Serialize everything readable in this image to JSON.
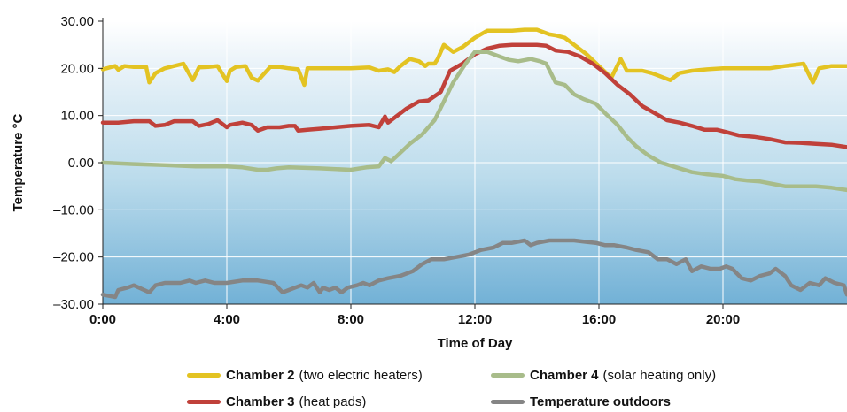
{
  "chart_data": {
    "type": "line",
    "xlabel": "Time of Day",
    "ylabel": "Temperature °C",
    "xlim": [
      0,
      24
    ],
    "ylim": [
      -30,
      30
    ],
    "x_ticks": [
      "0:00",
      "4:00",
      "8:00",
      "12:00",
      "16:00",
      "20:00"
    ],
    "y_ticks": [
      "30.00",
      "20.00",
      "10.00",
      "0.00",
      "–10.00",
      "–20.00",
      "–30.00"
    ],
    "background": "blue vertical gradient, white gridlines",
    "grid": true,
    "legend_position": "bottom",
    "series": [
      {
        "name": "Chamber 2",
        "note": "(two electric heaters)",
        "color": "#e3c322",
        "x": [
          0,
          0.4,
          0.5,
          0.7,
          1.0,
          1.4,
          1.5,
          1.7,
          2.0,
          2.6,
          2.9,
          3.1,
          3.4,
          3.7,
          4.0,
          4.1,
          4.3,
          4.6,
          4.8,
          5.0,
          5.4,
          5.7,
          6.0,
          6.3,
          6.5,
          6.6,
          6.8,
          7.0,
          7.5,
          8.0,
          8.6,
          8.9,
          9.2,
          9.4,
          9.6,
          9.9,
          10.2,
          10.4,
          10.5,
          10.7,
          10.8,
          11.0,
          11.3,
          11.6,
          12.0,
          12.4,
          12.8,
          13.2,
          13.6,
          14.0,
          14.4,
          14.6,
          14.9,
          15.2,
          15.6,
          16.0,
          16.4,
          16.7,
          16.9,
          17.1,
          17.4,
          17.7,
          17.9,
          18.3,
          18.6,
          19.0,
          19.5,
          20.0,
          20.5,
          21.0,
          21.5,
          22.0,
          22.6,
          22.9,
          23.1,
          23.5,
          24.0
        ],
        "y": [
          19.8,
          20.5,
          19.7,
          20.5,
          20.3,
          20.3,
          17.0,
          19.0,
          20.0,
          21.0,
          17.5,
          20.2,
          20.3,
          20.5,
          17.3,
          19.5,
          20.3,
          20.5,
          18.0,
          17.4,
          20.3,
          20.3,
          20.0,
          19.8,
          16.5,
          20.0,
          20.0,
          20.0,
          20.0,
          20.0,
          20.2,
          19.5,
          19.8,
          19.2,
          20.5,
          22.0,
          21.5,
          20.5,
          21.0,
          21.0,
          22.0,
          25.0,
          23.5,
          24.5,
          26.5,
          28.0,
          28.0,
          28.0,
          28.2,
          28.2,
          27.2,
          27.0,
          26.5,
          25.0,
          23.0,
          20.5,
          18.0,
          22.0,
          19.5,
          19.5,
          19.5,
          19.0,
          18.5,
          17.5,
          19.0,
          19.5,
          19.8,
          20.0,
          20.0,
          20.0,
          20.0,
          20.5,
          21.0,
          17.0,
          20.0,
          20.5,
          20.5
        ]
      },
      {
        "name": "Chamber 3",
        "note": "(heat pads)",
        "color": "#c0413a",
        "x": [
          0,
          0.5,
          1.0,
          1.5,
          1.7,
          2.0,
          2.3,
          2.6,
          2.9,
          3.1,
          3.4,
          3.7,
          4.0,
          4.1,
          4.5,
          4.8,
          5.0,
          5.3,
          5.7,
          6.0,
          6.2,
          6.3,
          6.6,
          7.0,
          7.5,
          8.0,
          8.6,
          8.9,
          9.1,
          9.2,
          9.5,
          9.8,
          10.2,
          10.5,
          10.9,
          11.2,
          11.6,
          12.0,
          12.4,
          12.8,
          13.2,
          13.6,
          14.0,
          14.3,
          14.6,
          15.0,
          15.4,
          15.8,
          16.2,
          16.6,
          17.0,
          17.4,
          17.8,
          18.2,
          18.6,
          19.0,
          19.4,
          19.8,
          20.1,
          20.5,
          21.0,
          21.5,
          22.0,
          22.5,
          23.0,
          23.5,
          24.0
        ],
        "y": [
          8.5,
          8.5,
          8.8,
          8.8,
          7.8,
          8.0,
          8.8,
          8.8,
          8.8,
          7.8,
          8.2,
          9.0,
          7.5,
          8.0,
          8.5,
          8.0,
          6.8,
          7.5,
          7.5,
          7.8,
          7.8,
          6.8,
          7.0,
          7.2,
          7.5,
          7.8,
          8.0,
          7.5,
          9.8,
          8.5,
          10.0,
          11.5,
          13.0,
          13.2,
          15.0,
          19.5,
          21.0,
          23.0,
          24.2,
          24.8,
          25.0,
          25.0,
          25.0,
          24.8,
          23.8,
          23.5,
          22.5,
          21.0,
          19.0,
          16.5,
          14.5,
          12.0,
          10.5,
          9.0,
          8.5,
          7.8,
          7.0,
          7.0,
          6.5,
          5.8,
          5.5,
          5.0,
          4.3,
          4.2,
          4.0,
          3.8,
          3.3
        ]
      },
      {
        "name": "Chamber 4",
        "note": "(solar heating only)",
        "color": "#a8bc8a",
        "x": [
          0,
          1.0,
          2.0,
          3.0,
          4.0,
          4.5,
          5.0,
          5.3,
          5.6,
          6.0,
          7.0,
          8.0,
          8.5,
          8.9,
          9.1,
          9.3,
          9.5,
          9.9,
          10.3,
          10.7,
          11.0,
          11.3,
          11.7,
          12.0,
          12.4,
          12.8,
          13.1,
          13.4,
          13.8,
          14.1,
          14.3,
          14.6,
          14.9,
          15.2,
          15.5,
          15.9,
          16.2,
          16.6,
          16.9,
          17.2,
          17.6,
          18.0,
          18.5,
          19.0,
          19.5,
          20.0,
          20.4,
          20.8,
          21.2,
          21.6,
          22.0,
          22.5,
          23.0,
          23.5,
          24.0
        ],
        "y": [
          0.0,
          -0.3,
          -0.5,
          -0.8,
          -0.8,
          -1.0,
          -1.5,
          -1.5,
          -1.2,
          -1.0,
          -1.2,
          -1.5,
          -1.0,
          -0.8,
          1.0,
          0.3,
          1.5,
          4.0,
          6.0,
          9.0,
          13.0,
          17.0,
          21.0,
          23.5,
          23.5,
          22.5,
          21.8,
          21.5,
          22.0,
          21.5,
          21.0,
          17.0,
          16.5,
          14.5,
          13.5,
          12.5,
          10.5,
          8.0,
          5.5,
          3.5,
          1.5,
          0.0,
          -1.0,
          -2.0,
          -2.5,
          -2.8,
          -3.5,
          -3.8,
          -4.0,
          -4.5,
          -5.0,
          -5.0,
          -5.0,
          -5.3,
          -5.8
        ]
      },
      {
        "name": "Temperature outdoors",
        "note": "",
        "color": "#858585",
        "x": [
          0,
          0.4,
          0.5,
          0.8,
          1.0,
          1.5,
          1.7,
          2.0,
          2.5,
          2.8,
          3.0,
          3.3,
          3.6,
          4.0,
          4.5,
          5.0,
          5.5,
          5.8,
          6.0,
          6.4,
          6.6,
          6.8,
          7.0,
          7.1,
          7.3,
          7.5,
          7.7,
          7.9,
          8.2,
          8.4,
          8.6,
          8.9,
          9.2,
          9.6,
          10.0,
          10.3,
          10.6,
          11.0,
          11.4,
          11.8,
          12.2,
          12.6,
          12.9,
          13.2,
          13.6,
          13.8,
          14.0,
          14.4,
          14.8,
          15.2,
          15.6,
          15.9,
          16.2,
          16.5,
          16.9,
          17.2,
          17.6,
          17.9,
          18.2,
          18.5,
          18.8,
          19.0,
          19.3,
          19.6,
          19.9,
          20.1,
          20.3,
          20.6,
          20.9,
          21.2,
          21.5,
          21.7,
          22.0,
          22.2,
          22.5,
          22.8,
          23.1,
          23.3,
          23.6,
          23.9,
          24.0
        ],
        "y": [
          -28.0,
          -28.5,
          -27.0,
          -26.5,
          -26.0,
          -27.5,
          -26.0,
          -25.5,
          -25.5,
          -25.0,
          -25.5,
          -25.0,
          -25.5,
          -25.5,
          -25.0,
          -25.0,
          -25.5,
          -27.5,
          -27.0,
          -26.0,
          -26.5,
          -25.5,
          -27.5,
          -26.5,
          -27.0,
          -26.5,
          -27.5,
          -26.5,
          -26.0,
          -25.5,
          -26.0,
          -25.0,
          -24.5,
          -24.0,
          -23.0,
          -21.5,
          -20.5,
          -20.5,
          -20.0,
          -19.5,
          -18.5,
          -18.0,
          -17.0,
          -17.0,
          -16.5,
          -17.5,
          -17.0,
          -16.5,
          -16.5,
          -16.5,
          -16.8,
          -17.0,
          -17.5,
          -17.5,
          -18.0,
          -18.5,
          -19.0,
          -20.5,
          -20.5,
          -21.5,
          -20.5,
          -23.0,
          -22.0,
          -22.5,
          -22.5,
          -22.0,
          -22.5,
          -24.5,
          -25.0,
          -24.0,
          -23.5,
          -22.5,
          -24.0,
          -26.0,
          -27.0,
          -25.5,
          -26.0,
          -24.5,
          -25.5,
          -26.0,
          -28.0
        ]
      }
    ]
  }
}
